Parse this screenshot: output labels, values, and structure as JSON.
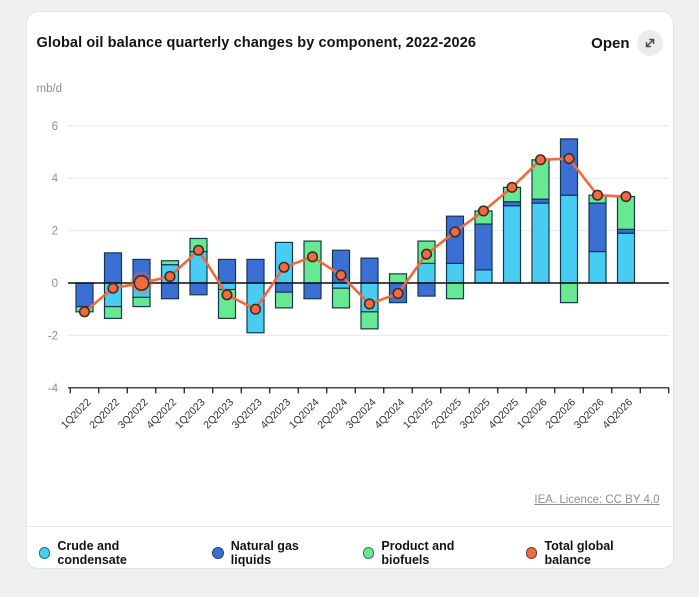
{
  "header": {
    "open_label": "Open"
  },
  "footer": {
    "licence_link": "IEA. Licence: CC BY 4.0"
  },
  "chart_data": {
    "type": "bar",
    "stacked": true,
    "title": "Global oil balance quarterly changes by component, 2022-2026",
    "ylabel": "mb/d",
    "xlabel": "",
    "ylim": [
      -4,
      6
    ],
    "yticks": [
      -4,
      -2,
      0,
      2,
      4,
      6
    ],
    "grid": true,
    "legend_position": "bottom",
    "highlight_index": 2,
    "categories": [
      "1Q2022",
      "2Q2022",
      "3Q2022",
      "4Q2022",
      "1Q2023",
      "2Q2023",
      "3Q2023",
      "4Q2023",
      "1Q2024",
      "2Q2024",
      "3Q2024",
      "4Q2024",
      "1Q2025",
      "2Q2025",
      "3Q2025",
      "4Q2025",
      "1Q2026",
      "2Q2026",
      "3Q2026",
      "4Q2026"
    ],
    "series": [
      {
        "name": "Crude and condensate",
        "type": "bar",
        "color": "#47CDF2",
        "values": [
          0,
          -0.9,
          -0.55,
          0.7,
          1.2,
          -0.25,
          -1.9,
          1.55,
          0,
          -0.2,
          -1.1,
          0,
          0.75,
          0.75,
          0.5,
          2.95,
          3.05,
          3.35,
          1.2,
          1.9
        ]
      },
      {
        "name": "Natural gas liquids",
        "type": "bar",
        "color": "#3C6FD3",
        "values": [
          -0.9,
          1.15,
          0.9,
          -0.6,
          -0.45,
          0.9,
          0.9,
          -0.35,
          -0.6,
          1.25,
          0.95,
          -0.75,
          -0.5,
          1.8,
          1.75,
          0.15,
          0.15,
          2.15,
          1.85,
          0.15
        ]
      },
      {
        "name": "Product and biofuels",
        "type": "bar",
        "color": "#67E992",
        "values": [
          -0.2,
          -0.45,
          -0.35,
          0.15,
          0.5,
          -1.1,
          0,
          -0.6,
          1.6,
          -0.75,
          -0.65,
          0.35,
          0.85,
          -0.6,
          0.5,
          0.55,
          1.5,
          -0.75,
          0.3,
          1.25
        ]
      },
      {
        "name": "Total global balance",
        "type": "line",
        "color": "#F2683F",
        "values": [
          -1.1,
          -0.2,
          0,
          0.25,
          1.25,
          -0.45,
          -1,
          0.6,
          1,
          0.3,
          -0.8,
          -0.4,
          1.1,
          1.95,
          2.75,
          3.65,
          4.7,
          4.75,
          3.35,
          3.3
        ]
      }
    ],
    "bar_outline_color": "#15374D",
    "axis_text_color": "#8a9097",
    "category_text_color": "#2e3338",
    "gridline_color": "#e7e8e9",
    "zero_line_color": "#0c0d0e"
  }
}
